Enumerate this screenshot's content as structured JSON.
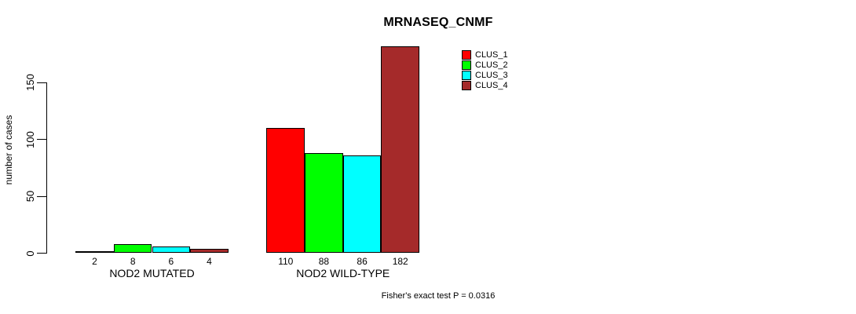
{
  "chart_data": {
    "type": "bar",
    "grouped": true,
    "title": "MRNASEQ_CNMF",
    "xlabel": "",
    "ylabel": "number of cases",
    "categories": [
      "NOD2 MUTATED",
      "NOD2 WILD-TYPE"
    ],
    "series": [
      {
        "name": "CLUS_1",
        "color": "#ff0000",
        "values": [
          2,
          110
        ]
      },
      {
        "name": "CLUS_2",
        "color": "#00ff00",
        "values": [
          8,
          88
        ]
      },
      {
        "name": "CLUS_3",
        "color": "#00ffff",
        "values": [
          6,
          86
        ]
      },
      {
        "name": "CLUS_4",
        "color": "#a52a2a",
        "values": [
          4,
          182
        ]
      }
    ],
    "bar_labels": [
      [
        "2",
        "8",
        "6",
        "4"
      ],
      [
        "110",
        "88",
        "86",
        "182"
      ]
    ],
    "yticks": [
      0,
      50,
      100,
      150
    ],
    "ylim": [
      0,
      185
    ],
    "grid": false,
    "legend_position": "top-right",
    "bar_outline_color": "#000000",
    "annotation": "Fisher's exact test P = 0.0316"
  }
}
